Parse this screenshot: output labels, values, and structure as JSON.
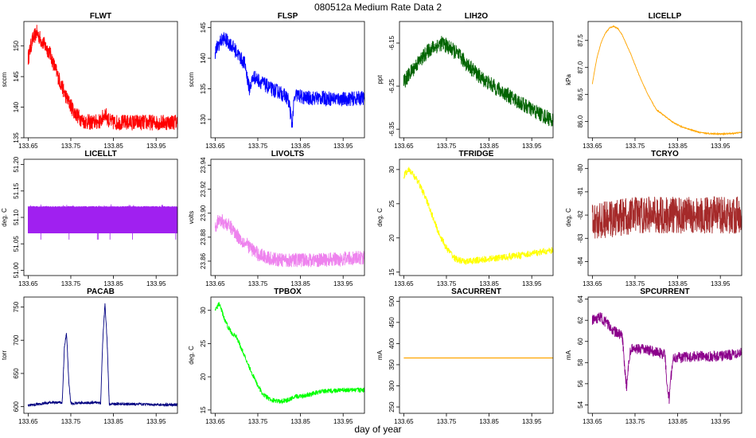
{
  "title": "080512a   Medium Rate Data 2",
  "xlabel": "day of year",
  "chart_data": [
    {
      "type": "line",
      "title": "FLWT",
      "ylabel": "sccm",
      "color": "#ff0000",
      "xlim": [
        133.64,
        134.0
      ],
      "xticks": [
        133.65,
        133.75,
        133.85,
        133.95
      ],
      "ylim": [
        135,
        154
      ],
      "yticks": [
        135,
        140,
        145,
        150
      ],
      "noise": 1.3,
      "series": [
        {
          "name": "FLWT",
          "x": [
            133.65,
            133.66,
            133.67,
            133.68,
            133.7,
            133.72,
            133.74,
            133.76,
            133.78,
            133.8,
            133.82,
            133.83,
            133.84,
            133.85,
            133.88,
            133.92,
            133.96,
            134.0
          ],
          "y": [
            148,
            151,
            152.2,
            151,
            149,
            145,
            141.5,
            139,
            137.7,
            137.5,
            137.7,
            139,
            137.7,
            137.5,
            137.5,
            137.5,
            137.5,
            137.6
          ]
        }
      ]
    },
    {
      "type": "line",
      "title": "FLSP",
      "ylabel": "sccm",
      "color": "#0000ff",
      "xlim": [
        133.64,
        134.0
      ],
      "xticks": [
        133.65,
        133.75,
        133.85,
        133.95
      ],
      "ylim": [
        127,
        146
      ],
      "yticks": [
        130,
        135,
        140,
        145
      ],
      "noise": 1.2,
      "series": [
        {
          "name": "FLSP",
          "x": [
            133.65,
            133.66,
            133.67,
            133.69,
            133.71,
            133.72,
            133.73,
            133.74,
            133.76,
            133.78,
            133.8,
            133.82,
            133.825,
            133.83,
            133.835,
            133.84,
            133.86,
            133.9,
            133.95,
            134.0
          ],
          "y": [
            141,
            142.5,
            143.3,
            142,
            140,
            139,
            135,
            137,
            136,
            135,
            134.5,
            133.5,
            132,
            129,
            133,
            134,
            133.5,
            133.5,
            133.3,
            133.5
          ]
        }
      ]
    },
    {
      "type": "line",
      "title": "LIH2O",
      "ylabel": "ppt",
      "color": "#006400",
      "xlim": [
        133.64,
        134.0
      ],
      "xticks": [
        133.65,
        133.75,
        133.85,
        133.95
      ],
      "ylim": [
        -6.37,
        -6.1
      ],
      "yticks": [
        -6.35,
        -6.25,
        -6.15
      ],
      "noise": 0.018,
      "series": [
        {
          "name": "LIH2O",
          "x": [
            133.65,
            133.68,
            133.71,
            133.74,
            133.77,
            133.8,
            133.83,
            133.86,
            133.9,
            133.95,
            134.0
          ],
          "y": [
            -6.24,
            -6.2,
            -6.165,
            -6.15,
            -6.17,
            -6.2,
            -6.23,
            -6.25,
            -6.275,
            -6.305,
            -6.33
          ]
        }
      ]
    },
    {
      "type": "line",
      "title": "LICELLP",
      "ylabel": "kPa",
      "color": "#ffa500",
      "xlim": [
        133.64,
        134.0
      ],
      "xticks": [
        133.65,
        133.75,
        133.85,
        133.95
      ],
      "ylim": [
        85.7,
        87.85
      ],
      "yticks": [
        86.0,
        86.5,
        87.0,
        87.5
      ],
      "noise": 0.008,
      "series": [
        {
          "name": "LICELLP",
          "x": [
            133.65,
            133.66,
            133.67,
            133.68,
            133.69,
            133.7,
            133.71,
            133.72,
            133.74,
            133.76,
            133.78,
            133.8,
            133.82,
            133.84,
            133.86,
            133.88,
            133.9,
            133.92,
            133.95,
            133.98,
            134.0
          ],
          "y": [
            86.7,
            87.15,
            87.45,
            87.63,
            87.73,
            87.76,
            87.72,
            87.6,
            87.25,
            86.85,
            86.5,
            86.22,
            86.1,
            85.98,
            85.9,
            85.85,
            85.8,
            85.78,
            85.77,
            85.78,
            85.8
          ]
        }
      ]
    },
    {
      "type": "line",
      "title": "LICELLT",
      "ylabel": "deg. C",
      "color": "#a020f0",
      "xlim": [
        133.64,
        134.0
      ],
      "xticks": [
        133.65,
        133.75,
        133.85,
        133.95
      ],
      "ylim": [
        50.99,
        51.21
      ],
      "yticks": [
        51.0,
        51.05,
        51.1,
        51.15,
        51.2
      ],
      "band": [
        51.07,
        51.12
      ],
      "noise": 0,
      "series": [
        {
          "name": "LICELLT",
          "x": [
            133.65,
            134.0
          ],
          "y": [
            51.095,
            51.095
          ]
        }
      ]
    },
    {
      "type": "line",
      "title": "LIVOLTS",
      "ylabel": "volts",
      "color": "#ee82ee",
      "xlim": [
        133.64,
        134.0
      ],
      "xticks": [
        133.65,
        133.75,
        133.85,
        133.95
      ],
      "ylim": [
        23.848,
        23.945
      ],
      "yticks": [
        23.86,
        23.88,
        23.9,
        23.92,
        23.94
      ],
      "noise": 0.006,
      "series": [
        {
          "name": "LIVOLTS",
          "x": [
            133.65,
            133.66,
            133.67,
            133.69,
            133.71,
            133.73,
            133.75,
            133.78,
            133.8,
            133.85,
            133.9,
            133.95,
            134.0
          ],
          "y": [
            23.89,
            23.894,
            23.893,
            23.887,
            23.878,
            23.872,
            23.866,
            23.862,
            23.861,
            23.861,
            23.861,
            23.862,
            23.863
          ]
        }
      ]
    },
    {
      "type": "line",
      "title": "TFRIDGE",
      "ylabel": "deg. C",
      "color": "#ffff00",
      "xlim": [
        133.64,
        134.0
      ],
      "xticks": [
        133.65,
        133.75,
        133.85,
        133.95
      ],
      "ylim": [
        14.5,
        31.5
      ],
      "yticks": [
        15,
        20,
        25,
        30
      ],
      "noise": 0.5,
      "series": [
        {
          "name": "TFRIDGE",
          "x": [
            133.65,
            133.66,
            133.67,
            133.69,
            133.71,
            133.73,
            133.75,
            133.77,
            133.79,
            133.82,
            133.86,
            133.9,
            133.95,
            134.0
          ],
          "y": [
            29,
            30,
            29.5,
            27.5,
            24.5,
            21,
            18.5,
            17,
            16.5,
            16.7,
            17,
            17.3,
            17.7,
            18.2
          ]
        }
      ]
    },
    {
      "type": "line",
      "title": "TCRYO",
      "ylabel": "deg. C",
      "color": "#a52a2a",
      "xlim": [
        133.64,
        134.0
      ],
      "xticks": [
        133.65,
        133.75,
        133.85,
        133.95
      ],
      "ylim": [
        -84.6,
        -79.6
      ],
      "yticks": [
        -84,
        -83,
        -82,
        -81,
        -80
      ],
      "noise": 0.8,
      "series": [
        {
          "name": "TCRYO",
          "x": [
            133.65,
            133.75,
            133.85,
            133.95,
            134.0
          ],
          "y": [
            -82.3,
            -82.0,
            -82.0,
            -82.0,
            -82.0
          ]
        }
      ]
    },
    {
      "type": "line",
      "title": "PACAB",
      "ylabel": "torr",
      "color": "#000080",
      "xlim": [
        133.64,
        134.0
      ],
      "xticks": [
        133.65,
        133.75,
        133.85,
        133.95
      ],
      "ylim": [
        590,
        765
      ],
      "yticks": [
        600,
        650,
        700,
        750
      ],
      "noise": 2,
      "series": [
        {
          "name": "PACAB",
          "x": [
            133.65,
            133.7,
            133.73,
            133.735,
            133.74,
            133.745,
            133.75,
            133.8,
            133.82,
            133.825,
            133.83,
            133.835,
            133.84,
            133.9,
            133.95,
            134.0
          ],
          "y": [
            602,
            606,
            606,
            690,
            712,
            640,
            605,
            606,
            606,
            700,
            755,
            700,
            604,
            604,
            603,
            603
          ]
        }
      ]
    },
    {
      "type": "line",
      "title": "TPBOX",
      "ylabel": "deg. C",
      "color": "#00ff00",
      "xlim": [
        133.64,
        134.0
      ],
      "xticks": [
        133.65,
        133.75,
        133.85,
        133.95
      ],
      "ylim": [
        14.5,
        32
      ],
      "yticks": [
        15,
        20,
        25,
        30
      ],
      "noise": 0.35,
      "series": [
        {
          "name": "TPBOX",
          "x": [
            133.65,
            133.66,
            133.67,
            133.68,
            133.69,
            133.7,
            133.72,
            133.74,
            133.76,
            133.78,
            133.8,
            133.82,
            133.84,
            133.86,
            133.9,
            133.95,
            134.0
          ],
          "y": [
            30,
            31,
            29,
            27.5,
            26.5,
            26,
            23,
            20,
            17.5,
            16.5,
            16.3,
            16.5,
            17,
            17.2,
            17.8,
            18,
            18
          ]
        }
      ]
    },
    {
      "type": "line",
      "title": "SACURRENT",
      "ylabel": "mA",
      "color": "#ffa500",
      "xlim": [
        133.64,
        134.0
      ],
      "xticks": [
        133.65,
        133.75,
        133.85,
        133.95
      ],
      "ylim": [
        235,
        510
      ],
      "yticks": [
        250,
        300,
        350,
        400,
        450,
        500
      ],
      "noise": 0,
      "series": [
        {
          "name": "SACURRENT",
          "x": [
            133.65,
            134.0
          ],
          "y": [
            366,
            366
          ]
        }
      ]
    },
    {
      "type": "line",
      "title": "SPCURRENT",
      "ylabel": "mA",
      "color": "#8b008b",
      "xlim": [
        133.64,
        134.0
      ],
      "xticks": [
        133.65,
        133.75,
        133.85,
        133.95
      ],
      "ylim": [
        53.2,
        64.2
      ],
      "yticks": [
        54,
        56,
        58,
        60,
        62,
        64
      ],
      "noise": 0.5,
      "series": [
        {
          "name": "SPCURRENT",
          "x": [
            133.65,
            133.67,
            133.7,
            133.72,
            133.725,
            133.73,
            133.735,
            133.74,
            133.78,
            133.8,
            133.82,
            133.825,
            133.83,
            133.835,
            133.84,
            133.86,
            133.9,
            133.95,
            133.98,
            134.0
          ],
          "y": [
            62,
            62.3,
            61,
            60.5,
            58,
            55.5,
            58,
            59.3,
            59.2,
            59,
            58.8,
            56,
            54.5,
            57,
            58.5,
            58.5,
            58.6,
            58.6,
            58.8,
            59
          ]
        }
      ]
    }
  ]
}
